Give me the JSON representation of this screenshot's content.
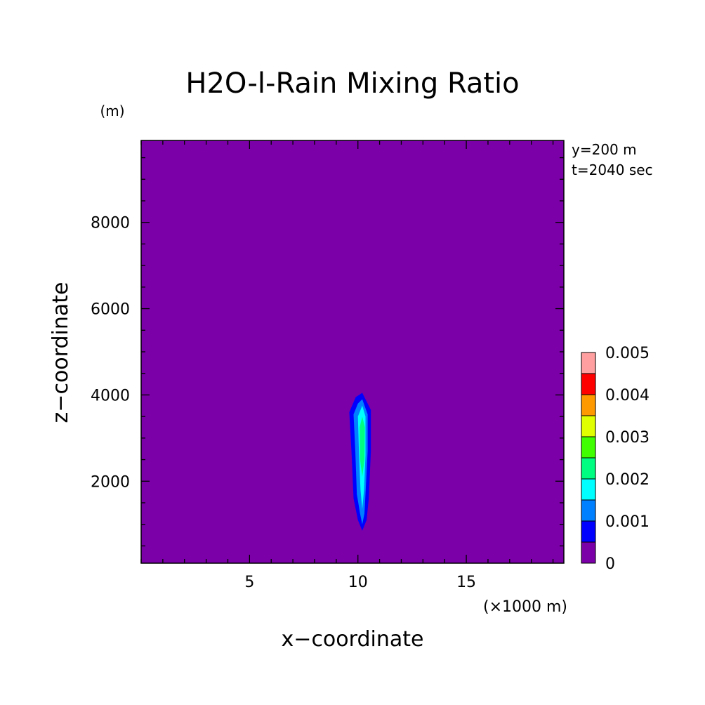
{
  "chart_data": {
    "type": "heatmap",
    "title": "H2O-l-Rain Mixing Ratio",
    "xlabel": "x−coordinate",
    "ylabel": "z−coordinate",
    "x_unit": "(×1000 m)",
    "y_unit": "(m)",
    "annotations": [
      "y=200 m",
      "t=2040 sec"
    ],
    "xlim": [
      0,
      19.5
    ],
    "ylim": [
      100,
      9900
    ],
    "xticks": [
      5,
      10,
      15
    ],
    "yticks": [
      2000,
      4000,
      6000,
      8000
    ],
    "x_minor_step": 1,
    "y_minor_step": 500,
    "background_value": 0,
    "contour_levels": [
      {
        "min": 0.0005,
        "color": "#0000ff"
      },
      {
        "min": 0.001,
        "color": "#0080ff"
      },
      {
        "min": 0.0015,
        "color": "#00ffff"
      },
      {
        "min": 0.002,
        "color": "#00ff80"
      }
    ],
    "contour_regions": [
      {
        "level_min": 0.0005,
        "points": [
          [
            10.2,
            4050
          ],
          [
            10.6,
            3650
          ],
          [
            10.6,
            2700
          ],
          [
            10.5,
            1600
          ],
          [
            10.4,
            1100
          ],
          [
            10.2,
            850
          ],
          [
            10.0,
            1100
          ],
          [
            9.8,
            1600
          ],
          [
            9.7,
            2700
          ],
          [
            9.6,
            3600
          ],
          [
            9.9,
            3950
          ]
        ]
      },
      {
        "level_min": 0.001,
        "points": [
          [
            10.2,
            3900
          ],
          [
            10.45,
            3550
          ],
          [
            10.45,
            2700
          ],
          [
            10.35,
            1700
          ],
          [
            10.3,
            1250
          ],
          [
            10.2,
            1000
          ],
          [
            10.1,
            1250
          ],
          [
            9.95,
            1700
          ],
          [
            9.88,
            2700
          ],
          [
            9.8,
            3550
          ],
          [
            10.0,
            3800
          ]
        ]
      },
      {
        "level_min": 0.0015,
        "points": [
          [
            10.2,
            3750
          ],
          [
            10.35,
            3500
          ],
          [
            10.35,
            2600
          ],
          [
            10.28,
            1800
          ],
          [
            10.2,
            1350
          ],
          [
            10.12,
            1800
          ],
          [
            10.05,
            2600
          ],
          [
            10.0,
            3500
          ]
        ]
      },
      {
        "level_min": 0.002,
        "points": [
          [
            10.2,
            3500
          ],
          [
            10.32,
            3250
          ],
          [
            10.3,
            2500
          ],
          [
            10.2,
            2100
          ],
          [
            10.1,
            2500
          ],
          [
            10.08,
            3250
          ]
        ]
      }
    ],
    "colorbar": {
      "colors": [
        "#7b00a8",
        "#0000ff",
        "#0080ff",
        "#00ffff",
        "#00ff80",
        "#40ff00",
        "#e0ff00",
        "#ff9900",
        "#ff0000",
        "#ff9f9f"
      ],
      "labels": [
        "0",
        "0.001",
        "0.002",
        "0.003",
        "0.004",
        "0.005"
      ]
    },
    "colors": {
      "background": "#7b00a8"
    }
  }
}
